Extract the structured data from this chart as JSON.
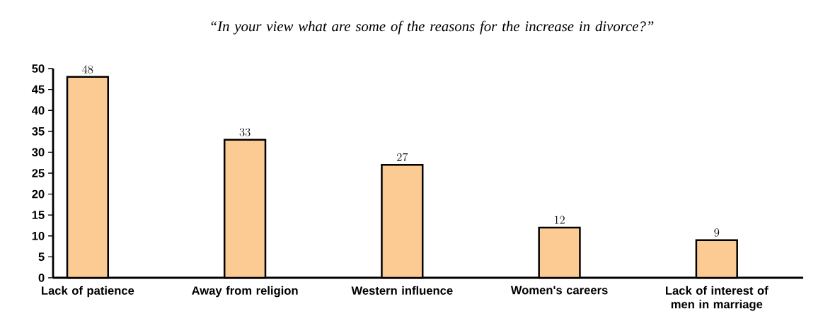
{
  "chart_data": {
    "type": "bar",
    "title": "“In your view what are some of the reasons for the increase in divorce?”",
    "categories": [
      "Lack of patience",
      "Away from religion",
      "Western influence",
      "Women's careers",
      "Lack of interest of men in marriage"
    ],
    "values": [
      48,
      33,
      27,
      12,
      9
    ],
    "color": "#fccb94",
    "ylim": [
      0,
      50
    ],
    "yticks": [
      0,
      5,
      10,
      15,
      20,
      25,
      30,
      35,
      40,
      45,
      50
    ],
    "data_labels": true
  }
}
